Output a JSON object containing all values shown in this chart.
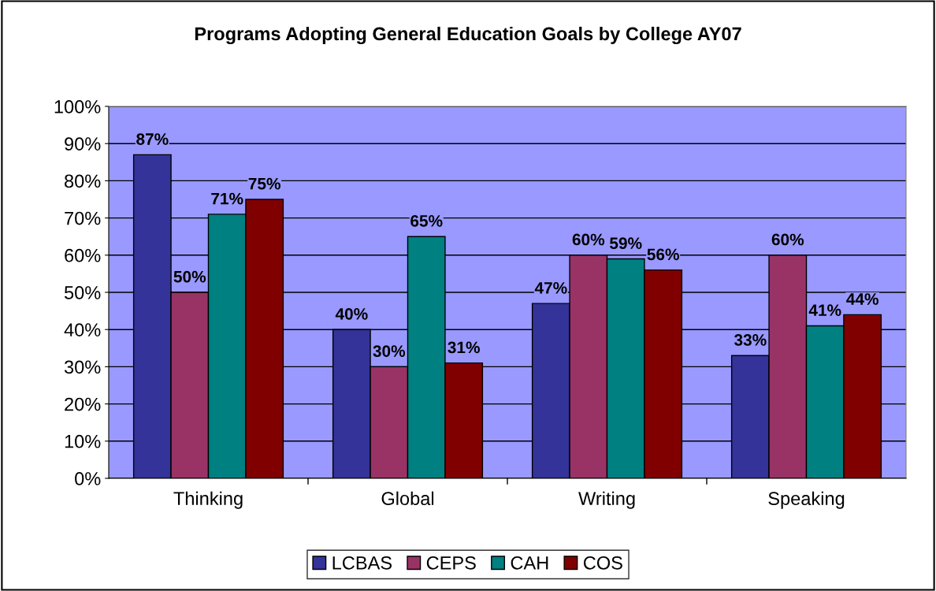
{
  "chart_data": {
    "type": "bar",
    "title": "Programs Adopting General Education Goals by College AY07",
    "categories": [
      "Thinking",
      "Global",
      "Writing",
      "Speaking"
    ],
    "series": [
      {
        "name": "LCBAS",
        "color": "#333399",
        "values": [
          87,
          40,
          47,
          33
        ],
        "value_labels": [
          "87%",
          "40%",
          "47%",
          "33%"
        ]
      },
      {
        "name": "CEPS",
        "color": "#993366",
        "values": [
          50,
          30,
          60,
          60
        ],
        "value_labels": [
          "50%",
          "30%",
          "60%",
          "60%"
        ]
      },
      {
        "name": "CAH",
        "color": "#008080",
        "values": [
          71,
          65,
          59,
          41
        ],
        "value_labels": [
          "71%",
          "65%",
          "59%",
          "41%"
        ]
      },
      {
        "name": "COS",
        "color": "#800000",
        "values": [
          75,
          31,
          56,
          44
        ],
        "value_labels": [
          "75%",
          "31%",
          "56%",
          "44%"
        ]
      }
    ],
    "ylim": [
      0,
      100
    ],
    "yticks": [
      {
        "value": 0,
        "label": "0%"
      },
      {
        "value": 10,
        "label": "10%"
      },
      {
        "value": 20,
        "label": "20%"
      },
      {
        "value": 30,
        "label": "30%"
      },
      {
        "value": 40,
        "label": "40%"
      },
      {
        "value": 50,
        "label": "50%"
      },
      {
        "value": 60,
        "label": "60%"
      },
      {
        "value": 70,
        "label": "70%"
      },
      {
        "value": 80,
        "label": "80%"
      },
      {
        "value": 90,
        "label": "90%"
      },
      {
        "value": 100,
        "label": "100%"
      }
    ],
    "grid": "y",
    "legend": "bottom"
  }
}
